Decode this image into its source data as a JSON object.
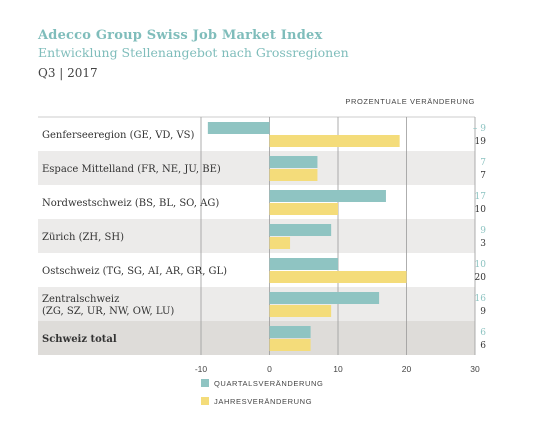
{
  "header": {
    "title": "Adecco Group Swiss Job Market Index",
    "subtitle": "Entwicklung Stellenangebot nach Grossregionen",
    "period": "Q3 | 2017"
  },
  "colors": {
    "quarterly": "#8fc4c2",
    "yearly": "#f4dc7a",
    "band": "#ecebea",
    "band_total": "#dedcd9",
    "grid": "#9a9a9a"
  },
  "chart_data": {
    "type": "bar",
    "orientation": "horizontal",
    "column_header": "PROZENTUALE VERÄNDERUNG",
    "categories": [
      [
        "Genferseeregion (GE, VD, VS)"
      ],
      [
        "Espace Mittelland (FR, NE, JU, BE)"
      ],
      [
        "Nordwestschweiz (BS, BL, SO, AG)"
      ],
      [
        "Zürich (ZH, SH)"
      ],
      [
        "Ostschweiz (TG, SG, AI, AR, GR, GL)"
      ],
      [
        "Zentralschweiz",
        "(ZG, SZ, UR, NW, OW, LU)"
      ],
      [
        "Schweiz total"
      ]
    ],
    "series": [
      {
        "name": "QUARTALSVERÄNDERUNG",
        "values": [
          -9,
          7,
          17,
          9,
          10,
          16,
          6
        ],
        "labels": [
          "– 9",
          "7",
          "17",
          "9",
          "10",
          "16",
          "6"
        ]
      },
      {
        "name": "JAHRESVERÄNDERUNG",
        "values": [
          19,
          7,
          10,
          3,
          20,
          9,
          6
        ],
        "labels": [
          "19",
          "7",
          "10",
          "3",
          "20",
          "9",
          "6"
        ]
      }
    ],
    "xlim": [
      -10,
      30
    ],
    "xticks": [
      -10,
      0,
      10,
      20,
      30
    ],
    "grid": true,
    "legend_position": "bottom-left"
  }
}
